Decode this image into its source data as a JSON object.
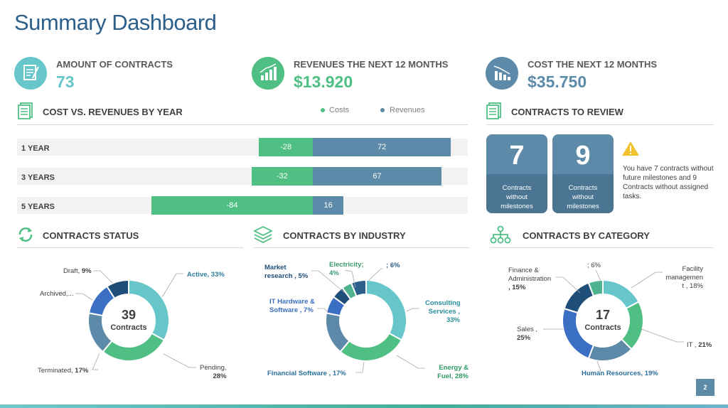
{
  "title": "Summary Dashboard",
  "colors": {
    "teal": "#67c6c9",
    "green": "#4fbf84",
    "slate": "#5d8aa8",
    "navy": "#2c5f8a",
    "dark_navy": "#1f4e79",
    "royal": "#3b6fc4",
    "mint": "#4fb38f"
  },
  "kpis": [
    {
      "label": "AMOUNT OF CONTRACTS",
      "value": "73",
      "icon": "contract-document-icon",
      "color": "#67c6c9"
    },
    {
      "label": "REVENUES THE NEXT 12 MONTHS",
      "value": "$13.920",
      "icon": "growth-chart-icon",
      "color": "#4fbf84"
    },
    {
      "label": "COST THE NEXT 12  MONTHS",
      "value": "$35.750",
      "icon": "decline-chart-icon",
      "color": "#5d8aa8"
    }
  ],
  "sections": {
    "cost_vs_revenues": "COST VS. REVENUES BY YEAR",
    "contracts_to_review": "CONTRACTS TO REVIEW",
    "contracts_status": "CONTRACTS STATUS",
    "contracts_by_industry": "CONTRACTS BY INDUSTRY",
    "contracts_by_category": "CONTRACTS BY CATEGORY"
  },
  "review": {
    "cards": [
      {
        "number": "7",
        "label": "Contracts without milestones"
      },
      {
        "number": "9",
        "label": "Contracts without milestones"
      }
    ],
    "note": "You have 7 contracts without future milestones and 9 Contracts without assigned tasks."
  },
  "page_number": "2",
  "chart_data": [
    {
      "type": "bar",
      "title": "COST VS. REVENUES BY YEAR",
      "orientation": "horizontal-diverging",
      "categories": [
        "1 YEAR",
        "3 YEARS",
        "5 YEARS"
      ],
      "series": [
        {
          "name": "Costs",
          "values": [
            -28,
            -32,
            -84
          ],
          "color": "#4fbf84"
        },
        {
          "name": "Revenues",
          "values": [
            72,
            67,
            16
          ],
          "color": "#5d8aa8"
        }
      ],
      "legend": "top"
    },
    {
      "type": "pie",
      "title": "CONTRACTS STATUS",
      "center_value": "39",
      "center_label": "Contracts",
      "slices": [
        {
          "name": "Active",
          "pct": 33,
          "label": "Active, 33%",
          "color": "#67c6c9"
        },
        {
          "name": "Pending",
          "pct": 28,
          "label_name": "Pending,",
          "label_value": "28%",
          "color": "#4fbf84"
        },
        {
          "name": "Terminated",
          "pct": 17,
          "label_name": "Terminated,",
          "label_value": "17%",
          "color": "#5d8aa8"
        },
        {
          "name": "Archived",
          "pct": 13,
          "label": "Archived,...",
          "color": "#3b6fc4"
        },
        {
          "name": "Draft",
          "pct": 9,
          "label_name": "Draft,",
          "label_value": "9%",
          "color": "#1f4e79"
        }
      ]
    },
    {
      "type": "pie",
      "title": "CONTRACTS BY INDUSTRY",
      "slices": [
        {
          "name": "Consulting Services",
          "pct": 33,
          "label_lines": [
            "Consulting",
            "Services ,",
            "33%"
          ],
          "color": "#67c6c9"
        },
        {
          "name": "Energy & Fuel",
          "pct": 28,
          "label_lines": [
            "Energy &",
            "Fuel, 28%"
          ],
          "color": "#4fbf84"
        },
        {
          "name": "Financial Software",
          "pct": 17,
          "label_lines": [
            "Financial Software , 17%"
          ],
          "color": "#5d8aa8"
        },
        {
          "name": "IT Hardware & Software",
          "pct": 7,
          "label_lines": [
            "IT Hardware &",
            "Software , 7%"
          ],
          "color": "#3b6fc4"
        },
        {
          "name": "Market research",
          "pct": 5,
          "label_lines": [
            "Market",
            "research , 5%"
          ],
          "color": "#1f4e79"
        },
        {
          "name": "Electricity",
          "pct": 4,
          "label_lines": [
            "Electricity;",
            "4%"
          ],
          "color": "#4fb38f"
        },
        {
          "name": "",
          "pct": 6,
          "label_lines": [
            "; 6%"
          ],
          "color": "#2c5f8a"
        }
      ]
    },
    {
      "type": "pie",
      "title": "CONTRACTS BY CATEGORY",
      "center_value": "17",
      "center_label": "Contracts",
      "slices": [
        {
          "name": "Facility management",
          "pct": 18,
          "label_lines": [
            "Facility",
            "managemen",
            "t , 18%"
          ],
          "color": "#67c6c9"
        },
        {
          "name": "IT",
          "pct": 21,
          "label_name": "IT ,",
          "label_value": "21%",
          "color": "#4fbf84"
        },
        {
          "name": "Human Resources",
          "pct": 19,
          "label_lines": [
            "Human Resources, 19%"
          ],
          "color": "#5d8aa8"
        },
        {
          "name": "Sales",
          "pct": 25,
          "label_name": "Sales ,",
          "label_value": "25%",
          "color": "#3b6fc4"
        },
        {
          "name": "Finance & Administration",
          "pct": 15,
          "label_lines": [
            "Finance &",
            "Administration",
            ", 15%"
          ],
          "color": "#1f4e79"
        },
        {
          "name": "",
          "pct": 6,
          "label_lines": [
            "; 6%"
          ],
          "color": "#4fb38f"
        }
      ]
    }
  ]
}
